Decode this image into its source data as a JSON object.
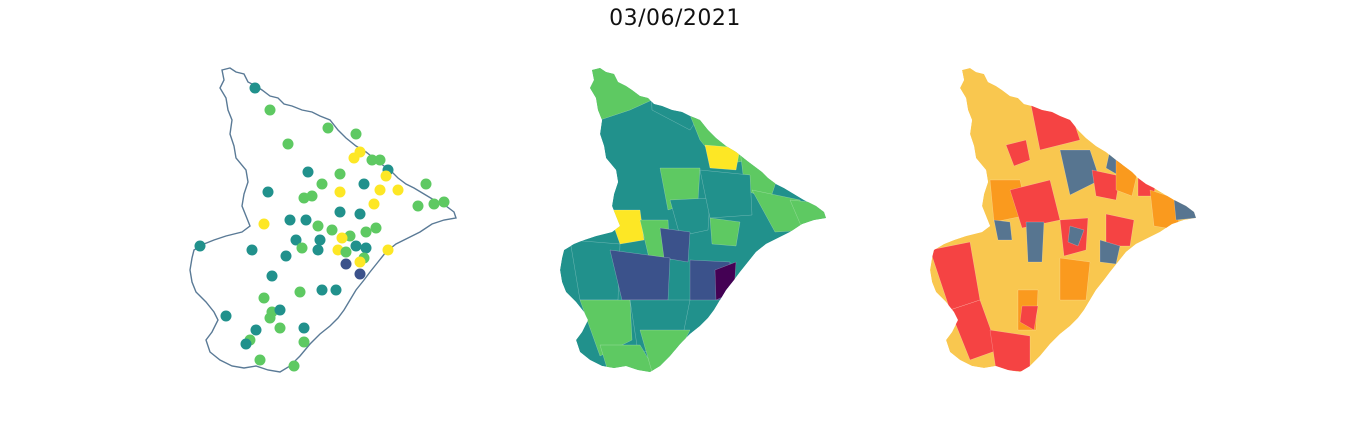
{
  "title": "03/06/2021",
  "colors": {
    "outline": "#5a7a96",
    "viridis": [
      "#440154",
      "#3b528b",
      "#21918c",
      "#5ec962",
      "#fde725"
    ],
    "categories": {
      "red": "#f54343",
      "orange": "#fa9a1e",
      "yellow": "#f9c74f",
      "blue": "#577590"
    }
  },
  "maps": [
    {
      "name": "point-map",
      "kind": "points"
    },
    {
      "name": "choropleth-map",
      "kind": "choropleth"
    },
    {
      "name": "category-map",
      "kind": "categories"
    }
  ]
}
